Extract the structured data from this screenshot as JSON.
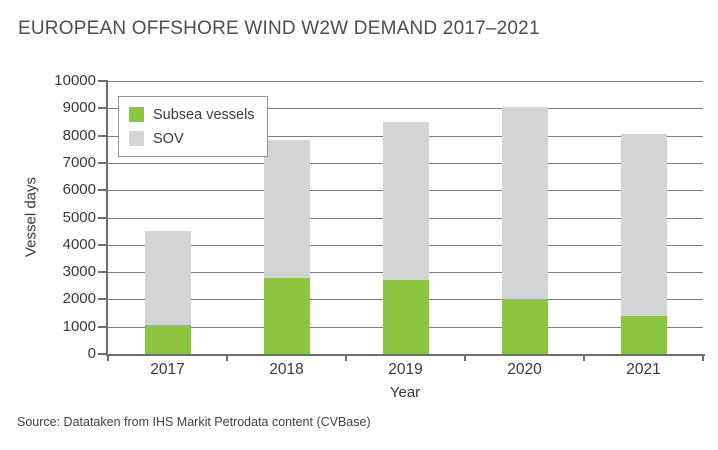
{
  "title": "EUROPEAN OFFSHORE WIND W2W DEMAND 2017–2021",
  "source": "Source: Datataken from IHS Markit Petrodata content (CVBase)",
  "colors": {
    "subsea_green": "#8cc63f",
    "sov_gray": "#d3d4d6",
    "axis": "#6d6e71",
    "gridline": "#7b7c7f",
    "title_text": "#4d4e50",
    "tick_text": "#38393b"
  },
  "chart_data": {
    "type": "bar",
    "stacked": true,
    "title": "EUROPEAN OFFSHORE WIND W2W DEMAND 2017–2021",
    "categories": [
      "2017",
      "2018",
      "2019",
      "2020",
      "2021"
    ],
    "series": [
      {
        "name": "Subsea vessels",
        "color": "#8cc63f",
        "values": [
          1050,
          2800,
          2700,
          2000,
          1400
        ]
      },
      {
        "name": "SOV",
        "color": "#d3d4d6",
        "values": [
          3450,
          5050,
          5800,
          7050,
          6650
        ]
      }
    ],
    "totals": [
      4500,
      7850,
      8500,
      9050,
      8050
    ],
    "xlabel": "Year",
    "ylabel": "Vessel days",
    "ylim": [
      0,
      10000
    ],
    "ytick_step": 1000,
    "grid": true,
    "legend_position": "top-left-inside"
  }
}
